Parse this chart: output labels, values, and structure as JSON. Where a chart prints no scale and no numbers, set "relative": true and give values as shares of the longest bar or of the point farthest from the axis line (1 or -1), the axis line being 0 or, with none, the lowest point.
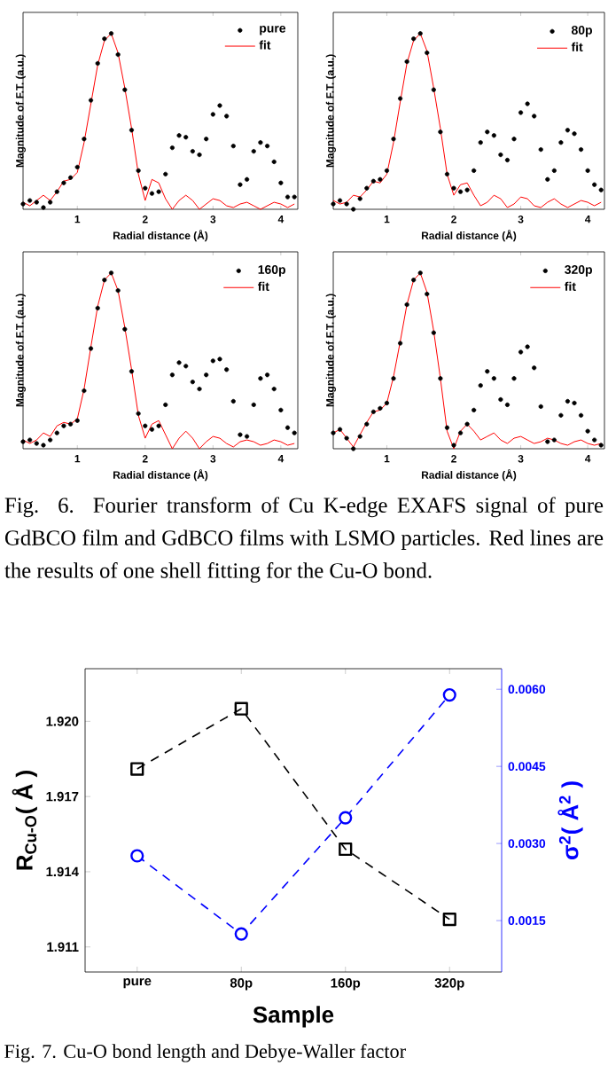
{
  "chart_data": [
    {
      "type": "line",
      "relative": true,
      "xlabel": "Radial distance (Å)",
      "ylabel": "Magnitude of F.T. (a.u.)",
      "xlim": [
        0.2,
        4.25
      ],
      "xticks": [
        1,
        2,
        3,
        4
      ],
      "legend": "top right",
      "x": [
        0.2,
        0.3,
        0.4,
        0.5,
        0.6,
        0.7,
        0.8,
        0.9,
        1.0,
        1.1,
        1.2,
        1.3,
        1.4,
        1.5,
        1.6,
        1.7,
        1.8,
        1.9,
        2.0,
        2.1,
        2.2,
        2.3,
        2.4,
        2.5,
        2.6,
        2.7,
        2.8,
        2.9,
        3.0,
        3.1,
        3.2,
        3.3,
        3.4,
        3.5,
        3.6,
        3.7,
        3.8,
        3.9,
        4.0,
        4.1,
        4.2
      ],
      "series": [
        {
          "name": "pure",
          "type": "scatter",
          "marker": "circle",
          "color": "#000000",
          "values": [
            0.03,
            0.05,
            0.04,
            0.01,
            0.04,
            0.1,
            0.15,
            0.18,
            0.24,
            0.4,
            0.62,
            0.83,
            0.97,
            1.0,
            0.88,
            0.68,
            0.45,
            0.22,
            0.12,
            0.09,
            0.1,
            0.2,
            0.35,
            0.42,
            0.41,
            0.33,
            0.31,
            0.4,
            0.54,
            0.59,
            0.53,
            0.36,
            0.14,
            0.17,
            0.33,
            0.38,
            0.36,
            0.27,
            0.15,
            0.07,
            0.07
          ]
        },
        {
          "name": "fit",
          "type": "line",
          "color": "#ff0000",
          "values": [
            0.04,
            0.02,
            0.05,
            0.08,
            0.05,
            0.1,
            0.16,
            0.17,
            0.21,
            0.38,
            0.6,
            0.82,
            0.96,
            1.0,
            0.89,
            0.69,
            0.46,
            0.2,
            0.05,
            0.17,
            0.15,
            0.06,
            0.0,
            0.05,
            0.08,
            0.05,
            0.0,
            0.03,
            0.06,
            0.05,
            0.02,
            0.01,
            0.03,
            0.04,
            0.02,
            0.0,
            0.02,
            0.04,
            0.03,
            0.01,
            0.03
          ]
        }
      ]
    },
    {
      "type": "line",
      "relative": true,
      "xlabel": "Radial distance (Å)",
      "ylabel": "Magnitude of F.T. (a.u.)",
      "xlim": [
        0.2,
        4.25
      ],
      "xticks": [
        1,
        2,
        3,
        4
      ],
      "legend": "top right",
      "x": [
        0.2,
        0.3,
        0.4,
        0.5,
        0.6,
        0.7,
        0.8,
        0.9,
        1.0,
        1.1,
        1.2,
        1.3,
        1.4,
        1.5,
        1.6,
        1.7,
        1.8,
        1.9,
        2.0,
        2.1,
        2.2,
        2.3,
        2.4,
        2.5,
        2.6,
        2.7,
        2.8,
        2.9,
        3.0,
        3.1,
        3.2,
        3.3,
        3.4,
        3.5,
        3.6,
        3.7,
        3.8,
        3.9,
        4.0,
        4.1,
        4.2
      ],
      "series": [
        {
          "name": "80p",
          "type": "scatter",
          "marker": "circle",
          "color": "#000000",
          "values": [
            0.03,
            0.05,
            0.03,
            0.0,
            0.06,
            0.12,
            0.16,
            0.17,
            0.22,
            0.4,
            0.63,
            0.84,
            0.97,
            1.0,
            0.89,
            0.68,
            0.44,
            0.2,
            0.12,
            0.1,
            0.11,
            0.22,
            0.38,
            0.44,
            0.42,
            0.31,
            0.28,
            0.4,
            0.55,
            0.6,
            0.53,
            0.34,
            0.17,
            0.22,
            0.38,
            0.45,
            0.43,
            0.34,
            0.22,
            0.14,
            0.11
          ]
        },
        {
          "name": "fit",
          "type": "line",
          "color": "#ff0000",
          "values": [
            0.05,
            0.03,
            0.04,
            0.08,
            0.07,
            0.11,
            0.16,
            0.15,
            0.2,
            0.38,
            0.61,
            0.83,
            0.96,
            1.0,
            0.9,
            0.69,
            0.46,
            0.2,
            0.08,
            0.14,
            0.15,
            0.08,
            0.02,
            0.04,
            0.08,
            0.06,
            0.01,
            0.03,
            0.07,
            0.06,
            0.02,
            0.01,
            0.04,
            0.06,
            0.03,
            0.01,
            0.03,
            0.05,
            0.04,
            0.02,
            0.04
          ]
        }
      ]
    },
    {
      "type": "line",
      "relative": true,
      "xlabel": "Radial distance (Å)",
      "ylabel": "Magnitude of F.T. (a.u.)",
      "xlim": [
        0.2,
        4.25
      ],
      "xticks": [
        1,
        2,
        3,
        4
      ],
      "legend": "top right",
      "x": [
        0.2,
        0.3,
        0.4,
        0.5,
        0.6,
        0.7,
        0.8,
        0.9,
        1.0,
        1.1,
        1.2,
        1.3,
        1.4,
        1.5,
        1.6,
        1.7,
        1.8,
        1.9,
        2.0,
        2.1,
        2.2,
        2.3,
        2.4,
        2.5,
        2.6,
        2.7,
        2.8,
        2.9,
        3.0,
        3.1,
        3.2,
        3.3,
        3.4,
        3.5,
        3.6,
        3.7,
        3.8,
        3.9,
        4.0,
        4.1,
        4.2
      ],
      "series": [
        {
          "name": "160p",
          "type": "scatter",
          "marker": "circle",
          "color": "#000000",
          "values": [
            0.04,
            0.05,
            0.03,
            0.02,
            0.05,
            0.09,
            0.13,
            0.14,
            0.16,
            0.33,
            0.57,
            0.8,
            0.96,
            1.0,
            0.9,
            0.68,
            0.44,
            0.2,
            0.13,
            0.11,
            0.13,
            0.25,
            0.42,
            0.49,
            0.47,
            0.38,
            0.34,
            0.42,
            0.5,
            0.51,
            0.45,
            0.27,
            0.08,
            0.07,
            0.25,
            0.4,
            0.42,
            0.34,
            0.22,
            0.12,
            0.09
          ]
        },
        {
          "name": "fit",
          "type": "line",
          "color": "#ff0000",
          "values": [
            0.05,
            0.03,
            0.05,
            0.09,
            0.07,
            0.13,
            0.15,
            0.14,
            0.17,
            0.34,
            0.58,
            0.81,
            0.96,
            1.0,
            0.9,
            0.69,
            0.45,
            0.19,
            0.06,
            0.14,
            0.16,
            0.08,
            0.0,
            0.06,
            0.1,
            0.06,
            0.0,
            0.04,
            0.07,
            0.06,
            0.03,
            0.01,
            0.04,
            0.05,
            0.04,
            0.02,
            0.03,
            0.05,
            0.04,
            0.02,
            0.03
          ]
        }
      ]
    },
    {
      "type": "line",
      "relative": true,
      "xlabel": "Radial distance (Å)",
      "ylabel": "Magnitude of F.T. (a.u.)",
      "xlim": [
        0.2,
        4.25
      ],
      "xticks": [
        1,
        2,
        3,
        4
      ],
      "legend": "top right",
      "annotations": [
        "Fig. 6. Fourier transform of Cu K-edge EXAFS signal of pure GdBCO film and GdBCO films with LSMO particles. Red lines are the results of one shell fitting for the Cu-O bond."
      ],
      "x": [
        0.2,
        0.3,
        0.4,
        0.5,
        0.6,
        0.7,
        0.8,
        0.9,
        1.0,
        1.1,
        1.2,
        1.3,
        1.4,
        1.5,
        1.6,
        1.7,
        1.8,
        1.9,
        2.0,
        2.1,
        2.2,
        2.3,
        2.4,
        2.5,
        2.6,
        2.7,
        2.8,
        2.9,
        3.0,
        3.1,
        3.2,
        3.3,
        3.4,
        3.5,
        3.6,
        3.7,
        3.8,
        3.9,
        4.0,
        4.1,
        4.2
      ],
      "series": [
        {
          "name": "320p",
          "type": "scatter",
          "marker": "circle",
          "color": "#000000",
          "values": [
            0.09,
            0.11,
            0.06,
            0.0,
            0.07,
            0.14,
            0.21,
            0.23,
            0.26,
            0.4,
            0.6,
            0.82,
            0.96,
            1.0,
            0.88,
            0.66,
            0.4,
            0.12,
            0.02,
            0.09,
            0.14,
            0.22,
            0.36,
            0.44,
            0.4,
            0.28,
            0.25,
            0.4,
            0.55,
            0.58,
            0.46,
            0.24,
            0.04,
            0.05,
            0.19,
            0.27,
            0.26,
            0.19,
            0.1,
            0.05,
            0.02
          ]
        },
        {
          "name": "fit",
          "type": "line",
          "color": "#ff0000",
          "values": [
            0.09,
            0.11,
            0.06,
            0.01,
            0.08,
            0.15,
            0.21,
            0.22,
            0.26,
            0.41,
            0.61,
            0.82,
            0.96,
            1.0,
            0.89,
            0.67,
            0.4,
            0.1,
            0.0,
            0.1,
            0.14,
            0.1,
            0.05,
            0.07,
            0.09,
            0.05,
            0.03,
            0.06,
            0.07,
            0.05,
            0.03,
            0.04,
            0.06,
            0.05,
            0.03,
            0.02,
            0.04,
            0.05,
            0.03,
            0.02,
            0.03
          ]
        }
      ]
    },
    {
      "type": "line",
      "categories": [
        "pure",
        "80p",
        "160p",
        "320p"
      ],
      "xlabel": "Sample",
      "ylabel": "R$_{Cu-O}$( Å )",
      "y2label": "σ$^{2}$( Å$^{2}$ )",
      "line_style": "dashed",
      "ylim": [
        1.91,
        1.9221
      ],
      "yticks": [
        {
          "value": 1.911,
          "label": "1.911"
        },
        {
          "value": 1.914,
          "label": "1.914"
        },
        {
          "value": 1.917,
          "label": "1.917"
        },
        {
          "value": 1.92,
          "label": "1.920"
        }
      ],
      "y2lim": [
        0.0005,
        0.0064
      ],
      "y2ticks": [
        {
          "value": 0.0015,
          "label": "0.0015"
        },
        {
          "value": 0.003,
          "label": "0.0030"
        },
        {
          "value": 0.0045,
          "label": "0.0045"
        },
        {
          "value": 0.006,
          "label": "0.0060"
        }
      ],
      "annotations": [
        "Fig. 7. Cu-O bond length and Debye-Waller factor"
      ],
      "series": [
        {
          "color": "#000000",
          "marker": "square",
          "values": [
            1.9181,
            1.9205,
            1.9149,
            1.9121
          ]
        },
        {
          "color": "#0000ff",
          "marker": "circle",
          "axis": "y2",
          "values": [
            0.00276,
            0.00124,
            0.0035,
            0.00589
          ]
        }
      ]
    }
  ]
}
